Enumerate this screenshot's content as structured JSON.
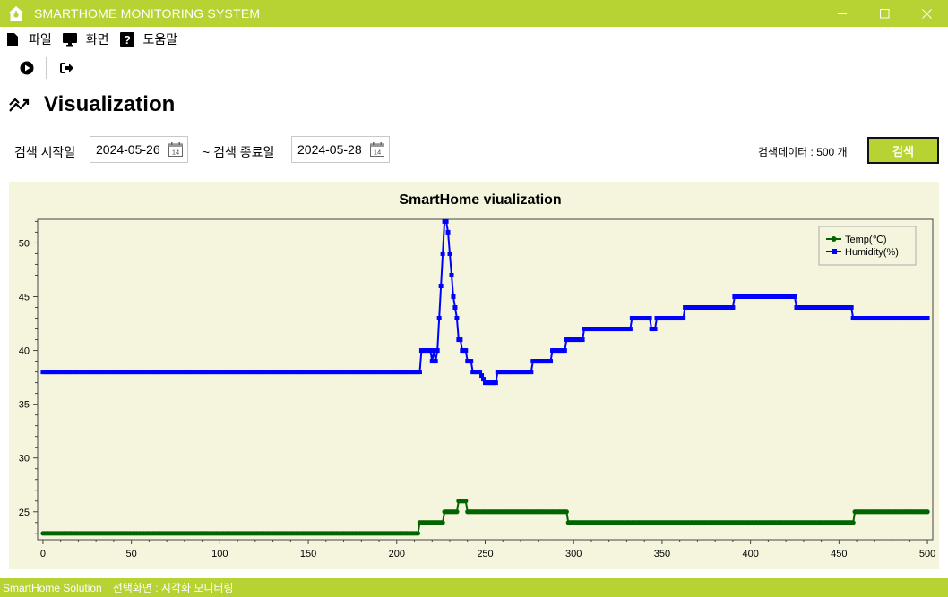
{
  "window": {
    "title": "SMARTHOME MONITORING SYSTEM",
    "app_icon": "home-icon",
    "controls": [
      "minimize-icon",
      "maximize-icon",
      "close-icon"
    ]
  },
  "menu": {
    "items": [
      {
        "label": "파일",
        "icon": "file-icon"
      },
      {
        "label": "화면",
        "icon": "monitor-icon"
      },
      {
        "label": "도움말",
        "icon": "help-icon"
      }
    ]
  },
  "toolbar": {
    "buttons": [
      {
        "icon": "play-icon"
      },
      {
        "icon": "exit-icon"
      }
    ]
  },
  "page": {
    "title": "Visualization",
    "title_icon": "trend-icon"
  },
  "search": {
    "start_label": "검색 시작일",
    "start_value": "2024-05-26",
    "end_label": "~ 검색 종료일",
    "end_value": "2024-05-28",
    "count_label": "검색데이터 : 500 개",
    "button_label": "검색"
  },
  "colors": {
    "accent": "#b6d333",
    "chart_bg": "#f5f5dd",
    "temp": "#006400",
    "humidity": "#0000ff"
  },
  "chart_data": {
    "type": "line",
    "title": "SmartHome viualization",
    "xlabel": "",
    "ylabel": "",
    "xlim": [
      -3,
      503
    ],
    "ylim": [
      22.4,
      52.2
    ],
    "xticks": [
      0,
      50,
      100,
      150,
      200,
      250,
      300,
      350,
      400,
      450,
      500
    ],
    "yticks": [
      25,
      30,
      35,
      40,
      45,
      50
    ],
    "grid": false,
    "legend": "top-right",
    "series": [
      {
        "name": "Temp(℃)",
        "marker": "circle",
        "x": [
          0,
          212,
          213,
          226,
          227,
          234,
          235,
          239,
          240,
          296,
          297,
          458,
          459,
          500
        ],
        "y": [
          23,
          23,
          24,
          24,
          25,
          25,
          26,
          26,
          25,
          25,
          24,
          24,
          25,
          25
        ]
      },
      {
        "name": "Humidity(%)",
        "marker": "square",
        "x": [
          0,
          213,
          214,
          219,
          220,
          221,
          222,
          223,
          224,
          225,
          226,
          227,
          228,
          229,
          230,
          231,
          232,
          233,
          234,
          235,
          236,
          237,
          238,
          239,
          240,
          242,
          243,
          246,
          247,
          250,
          251,
          256,
          257,
          276,
          277,
          287,
          288,
          295,
          296,
          305,
          306,
          332,
          333,
          343,
          344,
          346,
          347,
          362,
          363,
          390,
          391,
          425,
          426,
          457,
          458,
          500
        ],
        "y": [
          38,
          38,
          40,
          40,
          39,
          40,
          39,
          40,
          43,
          46,
          49,
          52,
          52,
          51,
          49,
          47,
          45,
          44,
          43,
          41,
          41,
          40,
          40,
          40,
          39,
          39,
          38,
          38,
          38,
          37,
          37,
          37,
          38,
          38,
          39,
          39,
          40,
          40,
          41,
          41,
          42,
          42,
          43,
          43,
          42,
          42,
          43,
          43,
          44,
          44,
          45,
          45,
          44,
          44,
          43,
          43
        ]
      }
    ]
  },
  "status": {
    "app_name": "SmartHome Solution",
    "screen_label": "선택화면 : 시각화 모니터링"
  }
}
